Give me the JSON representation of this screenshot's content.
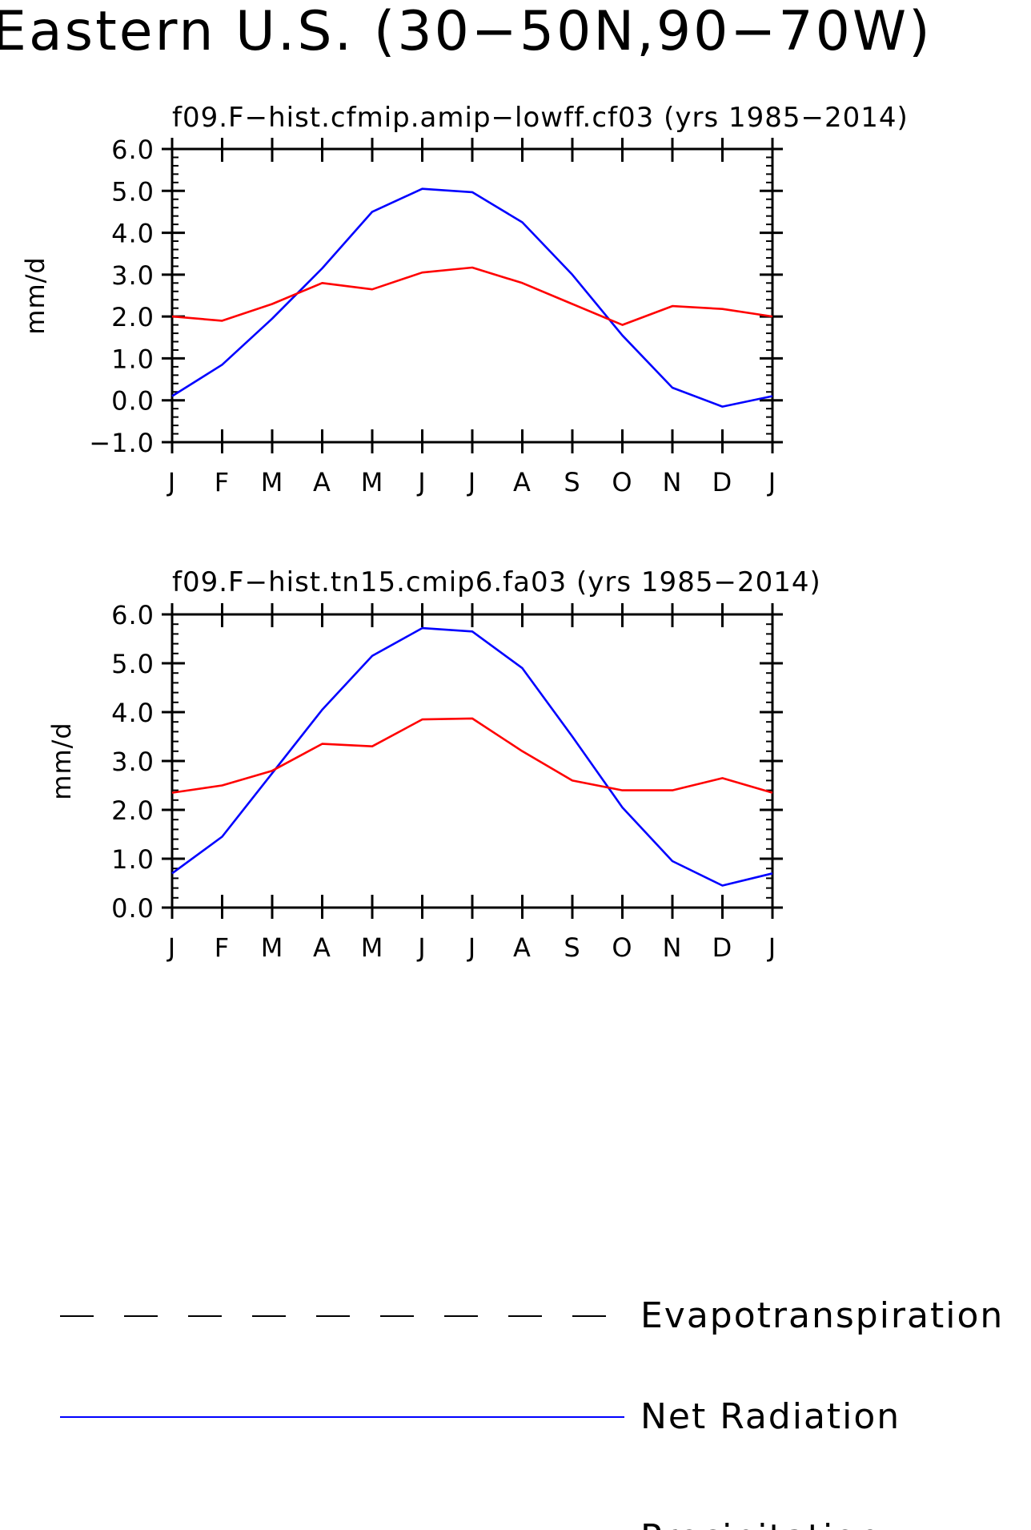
{
  "title": "Eastern U.S. (30−50N,90−70W)",
  "colors": {
    "Evapotranspiration": "#000000",
    "Net Radiation": "#0000ff",
    "Precipitation": "#ff0000"
  },
  "legend": {
    "placement": "bottom",
    "entries": [
      {
        "name": "Evapotranspiration",
        "style": "dashed"
      },
      {
        "name": "Net Radiation",
        "style": "solid"
      },
      {
        "name": "Precipitation",
        "style": "solid"
      }
    ]
  },
  "chart_data": [
    {
      "type": "line",
      "title": "f09.F−hist.cfmip.amip−lowff.cf03 (yrs 1985−2014)",
      "xlabel": "",
      "ylabel": "mm/d",
      "categories": [
        "J",
        "F",
        "M",
        "A",
        "M",
        "J",
        "J",
        "A",
        "S",
        "O",
        "N",
        "D",
        "J"
      ],
      "ylim": [
        -1.0,
        6.0
      ],
      "yticks": [
        -1.0,
        0.0,
        1.0,
        2.0,
        3.0,
        4.0,
        5.0,
        6.0
      ],
      "ytick_labels": [
        "−1.0",
        "0.0",
        "1.0",
        "2.0",
        "3.0",
        "4.0",
        "5.0",
        "6.0"
      ],
      "series": [
        {
          "name": "Net Radiation",
          "values": [
            0.1,
            0.85,
            1.95,
            3.15,
            4.5,
            5.05,
            4.97,
            4.25,
            3.0,
            1.55,
            0.3,
            -0.15,
            0.1
          ]
        },
        {
          "name": "Precipitation",
          "values": [
            2.0,
            1.9,
            2.3,
            2.8,
            2.65,
            3.05,
            3.17,
            2.8,
            2.3,
            1.8,
            2.25,
            2.18,
            2.0
          ]
        }
      ]
    },
    {
      "type": "line",
      "title": "f09.F−hist.tn15.cmip6.fa03 (yrs 1985−2014)",
      "xlabel": "",
      "ylabel": "mm/d",
      "categories": [
        "J",
        "F",
        "M",
        "A",
        "M",
        "J",
        "J",
        "A",
        "S",
        "O",
        "N",
        "D",
        "J"
      ],
      "ylim": [
        0.0,
        6.0
      ],
      "yticks": [
        0.0,
        1.0,
        2.0,
        3.0,
        4.0,
        5.0,
        6.0
      ],
      "ytick_labels": [
        "0.0",
        "1.0",
        "2.0",
        "3.0",
        "4.0",
        "5.0",
        "6.0"
      ],
      "series": [
        {
          "name": "Net Radiation",
          "values": [
            0.7,
            1.45,
            2.75,
            4.05,
            5.15,
            5.72,
            5.65,
            4.9,
            3.5,
            2.05,
            0.95,
            0.45,
            0.7
          ]
        },
        {
          "name": "Precipitation",
          "values": [
            2.35,
            2.5,
            2.8,
            3.35,
            3.3,
            3.85,
            3.87,
            3.2,
            2.6,
            2.4,
            2.4,
            2.65,
            2.35
          ]
        }
      ]
    }
  ]
}
